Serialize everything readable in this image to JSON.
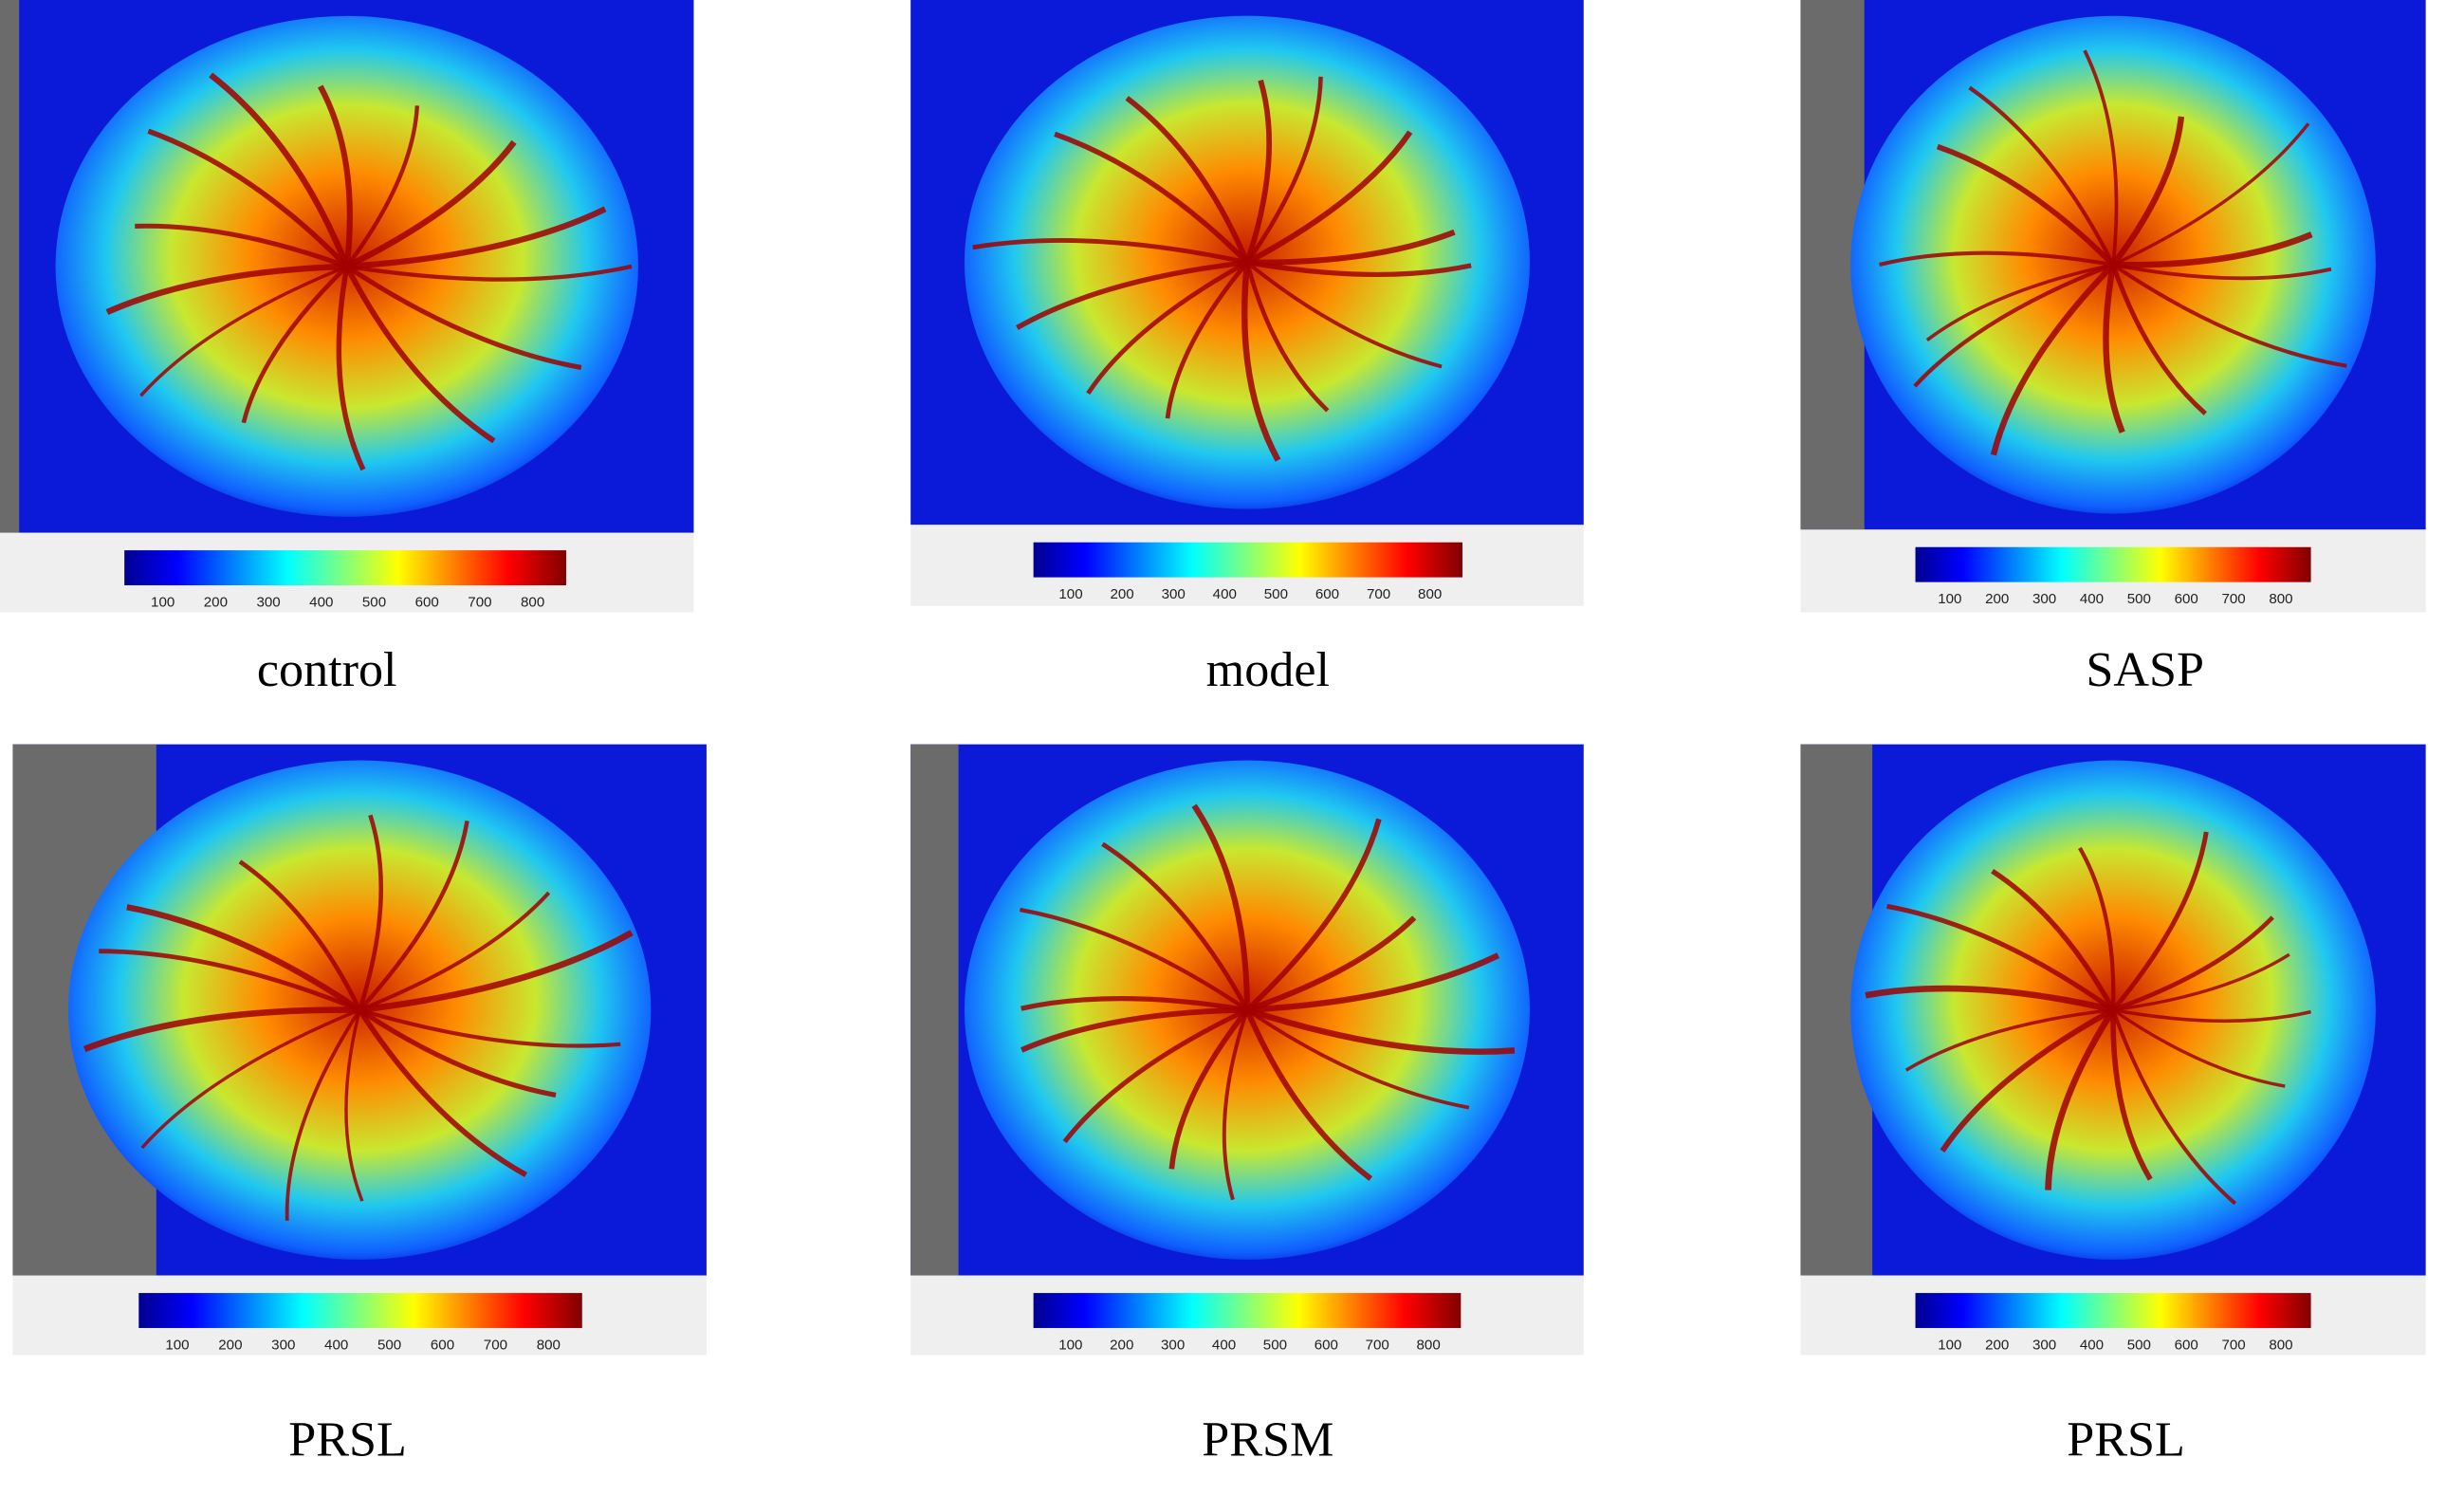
{
  "panels": [
    {
      "label": "control",
      "colorbar_ticks": [
        100,
        200,
        300,
        400,
        500,
        600,
        700,
        800
      ]
    },
    {
      "label": "model",
      "colorbar_ticks": [
        100,
        200,
        300,
        400,
        500,
        600,
        700,
        800
      ]
    },
    {
      "label": "SASP",
      "colorbar_ticks": [
        100,
        200,
        300,
        400,
        500,
        600,
        700,
        800
      ]
    },
    {
      "label": "PRSL",
      "colorbar_ticks": [
        100,
        200,
        300,
        400,
        500,
        600,
        700,
        800
      ]
    },
    {
      "label": "PRSM",
      "colorbar_ticks": [
        100,
        200,
        300,
        400,
        500,
        600,
        700,
        800
      ]
    },
    {
      "label": "PRSL",
      "colorbar_ticks": [
        100,
        200,
        300,
        400,
        500,
        600,
        700,
        800
      ]
    }
  ]
}
